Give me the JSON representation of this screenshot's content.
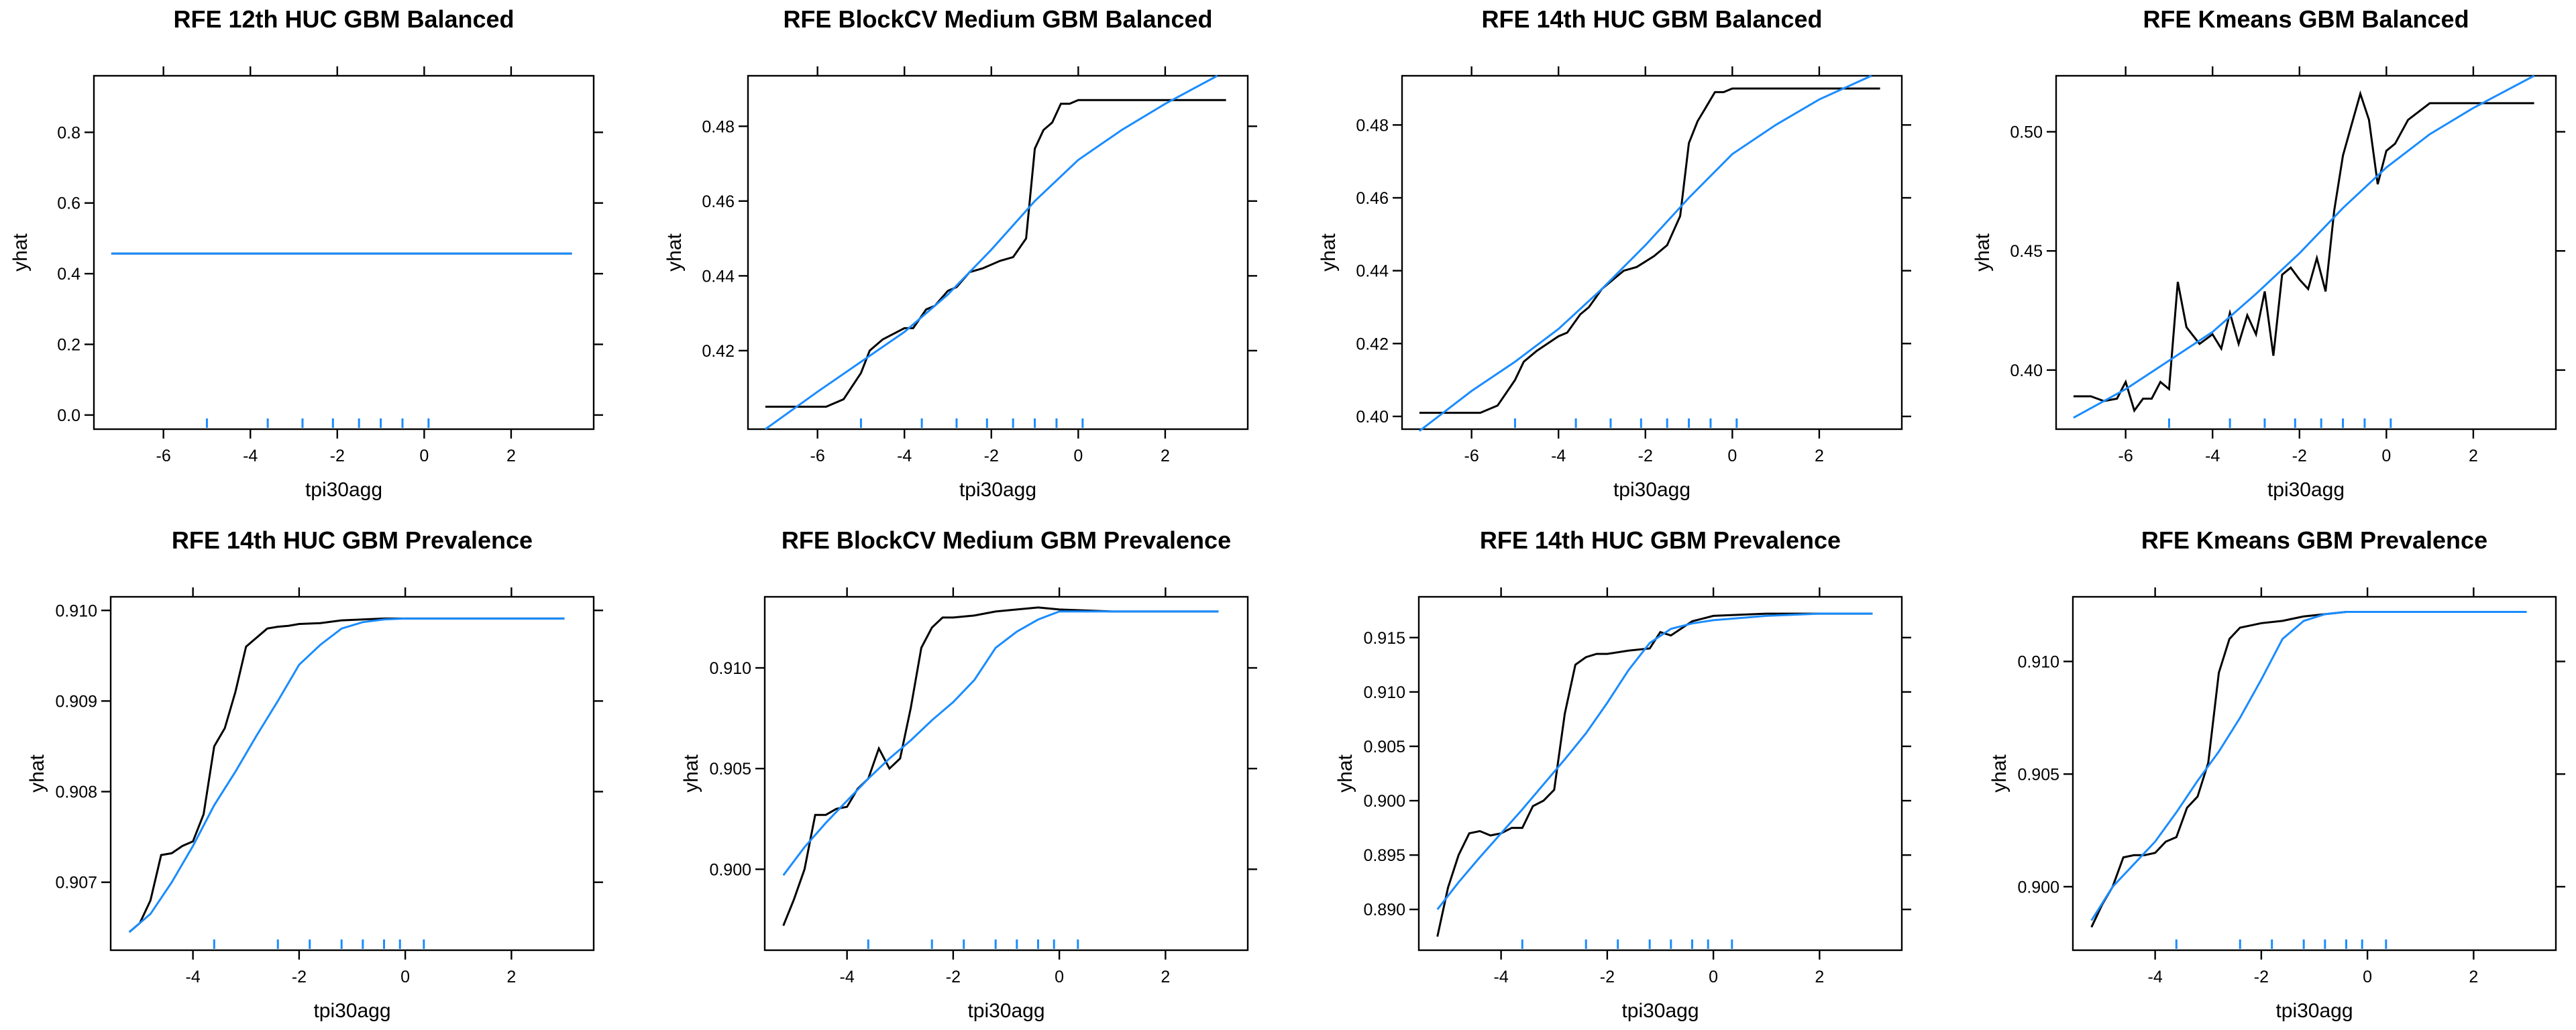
{
  "chart_data": [
    {
      "type": "line",
      "title": "RFE 12th HUC GBM Balanced",
      "xlabel": "tpi30agg",
      "ylabel": "yhat",
      "xlim": [
        -7.6,
        3.9
      ],
      "ylim": [
        -0.04,
        0.96
      ],
      "xticks": [
        -6,
        -4,
        -2,
        0,
        2
      ],
      "yticks": [
        0.0,
        0.2,
        0.4,
        0.6,
        0.8
      ],
      "ytick_labels": [
        "0.0",
        "0.2",
        "0.4",
        "0.6",
        "0.8"
      ],
      "rug": [
        -5,
        -3.6,
        -2.8,
        -2.1,
        -1.5,
        -1.0,
        -0.5,
        0.1
      ],
      "series": [
        {
          "color": "#000000",
          "x": [
            -7.2,
            3.4
          ],
          "y": [
            0.457,
            0.457
          ]
        },
        {
          "color": "#1a8cff",
          "x": [
            -7.2,
            3.4
          ],
          "y": [
            0.457,
            0.457
          ]
        }
      ]
    },
    {
      "type": "line",
      "title": "RFE BlockCV Medium GBM Balanced",
      "xlabel": "tpi30agg",
      "ylabel": "yhat",
      "xlim": [
        -7.6,
        3.9
      ],
      "ylim": [
        0.399,
        0.4935
      ],
      "xticks": [
        -6,
        -4,
        -2,
        0,
        2
      ],
      "yticks": [
        0.42,
        0.44,
        0.46,
        0.48
      ],
      "ytick_labels": [
        "0.42",
        "0.44",
        "0.46",
        "0.48"
      ],
      "rug": [
        -5,
        -3.6,
        -2.8,
        -2.1,
        -1.5,
        -1.0,
        -0.5,
        0.1
      ],
      "series": [
        {
          "color": "#000000",
          "x": [
            -7.2,
            -6.5,
            -5.8,
            -5.4,
            -5.0,
            -4.8,
            -4.5,
            -4.0,
            -3.8,
            -3.5,
            -3.3,
            -3.0,
            -2.8,
            -2.5,
            -2.2,
            -1.8,
            -1.5,
            -1.2,
            -1.0,
            -0.8,
            -0.6,
            -0.4,
            -0.2,
            0.0,
            0.2,
            0.5,
            1.0,
            2.0,
            3.4
          ],
          "y": [
            0.405,
            0.405,
            0.405,
            0.407,
            0.414,
            0.42,
            0.423,
            0.426,
            0.426,
            0.431,
            0.432,
            0.436,
            0.437,
            0.441,
            0.442,
            0.444,
            0.445,
            0.45,
            0.474,
            0.479,
            0.481,
            0.486,
            0.486,
            0.487,
            0.487,
            0.487,
            0.487,
            0.487,
            0.487
          ]
        },
        {
          "color": "#1a8cff",
          "x": [
            -7.2,
            -6.0,
            -5.0,
            -4.0,
            -3.0,
            -2.0,
            -1.0,
            0.0,
            1.0,
            2.0,
            3.2
          ],
          "y": [
            0.399,
            0.409,
            0.417,
            0.425,
            0.435,
            0.447,
            0.46,
            0.471,
            0.479,
            0.486,
            0.4935
          ]
        }
      ]
    },
    {
      "type": "line",
      "title": "RFE 14th HUC GBM Balanced",
      "xlabel": "tpi30agg",
      "ylabel": "yhat",
      "xlim": [
        -7.6,
        3.9
      ],
      "ylim": [
        0.3965,
        0.4935
      ],
      "xticks": [
        -6,
        -4,
        -2,
        0,
        2
      ],
      "yticks": [
        0.4,
        0.42,
        0.44,
        0.46,
        0.48
      ],
      "ytick_labels": [
        "0.40",
        "0.42",
        "0.44",
        "0.46",
        "0.48"
      ],
      "rug": [
        -5,
        -3.6,
        -2.8,
        -2.1,
        -1.5,
        -1.0,
        -0.5,
        0.1
      ],
      "series": [
        {
          "color": "#000000",
          "x": [
            -7.2,
            -6.5,
            -5.8,
            -5.4,
            -5.0,
            -4.8,
            -4.5,
            -4.0,
            -3.8,
            -3.5,
            -3.3,
            -3.0,
            -2.8,
            -2.5,
            -2.2,
            -1.8,
            -1.5,
            -1.2,
            -1.0,
            -0.8,
            -0.6,
            -0.4,
            -0.2,
            0.0,
            0.2,
            0.5,
            1.0,
            2.0,
            3.4
          ],
          "y": [
            0.401,
            0.401,
            0.401,
            0.403,
            0.41,
            0.415,
            0.418,
            0.422,
            0.423,
            0.428,
            0.43,
            0.435,
            0.437,
            0.44,
            0.441,
            0.444,
            0.447,
            0.455,
            0.475,
            0.481,
            0.485,
            0.489,
            0.489,
            0.49,
            0.49,
            0.49,
            0.49,
            0.49,
            0.49
          ]
        },
        {
          "color": "#1a8cff",
          "x": [
            -7.2,
            -6.0,
            -5.0,
            -4.0,
            -3.0,
            -2.0,
            -1.0,
            0.0,
            1.0,
            2.0,
            3.2
          ],
          "y": [
            0.396,
            0.407,
            0.415,
            0.424,
            0.435,
            0.447,
            0.46,
            0.472,
            0.48,
            0.487,
            0.4935
          ]
        }
      ]
    },
    {
      "type": "line",
      "title": "RFE Kmeans GBM Balanced",
      "xlabel": "tpi30agg",
      "ylabel": "yhat",
      "xlim": [
        -7.6,
        3.9
      ],
      "ylim": [
        0.3752,
        0.5235
      ],
      "xticks": [
        -6,
        -4,
        -2,
        0,
        2
      ],
      "yticks": [
        0.4,
        0.45,
        0.5
      ],
      "ytick_labels": [
        "0.40",
        "0.45",
        "0.50"
      ],
      "rug": [
        -5,
        -3.6,
        -2.8,
        -2.1,
        -1.5,
        -1.0,
        -0.5,
        0.1
      ],
      "series": [
        {
          "color": "#000000",
          "x": [
            -7.2,
            -6.8,
            -6.5,
            -6.2,
            -6.0,
            -5.8,
            -5.6,
            -5.4,
            -5.2,
            -5.0,
            -4.8,
            -4.6,
            -4.3,
            -4.0,
            -3.8,
            -3.6,
            -3.4,
            -3.2,
            -3.0,
            -2.8,
            -2.6,
            -2.4,
            -2.2,
            -2.0,
            -1.8,
            -1.6,
            -1.4,
            -1.2,
            -1.0,
            -0.8,
            -0.6,
            -0.4,
            -0.2,
            0.0,
            0.2,
            0.5,
            1.0,
            2.0,
            3.4
          ],
          "y": [
            0.389,
            0.389,
            0.387,
            0.388,
            0.395,
            0.383,
            0.388,
            0.388,
            0.395,
            0.392,
            0.437,
            0.418,
            0.411,
            0.415,
            0.409,
            0.424,
            0.411,
            0.423,
            0.415,
            0.433,
            0.406,
            0.44,
            0.443,
            0.438,
            0.434,
            0.447,
            0.433,
            0.467,
            0.49,
            0.503,
            0.516,
            0.505,
            0.478,
            0.492,
            0.495,
            0.505,
            0.512,
            0.512,
            0.512
          ]
        },
        {
          "color": "#1a8cff",
          "x": [
            -7.2,
            -6.0,
            -5.0,
            -4.0,
            -3.0,
            -2.0,
            -1.0,
            0.0,
            1.0,
            2.0,
            3.4
          ],
          "y": [
            0.38,
            0.392,
            0.404,
            0.416,
            0.432,
            0.449,
            0.468,
            0.485,
            0.499,
            0.51,
            0.5235
          ]
        }
      ]
    },
    {
      "type": "line",
      "title": "RFE 14th HUC GBM Prevalence",
      "xlabel": "tpi30agg",
      "ylabel": "yhat",
      "xlim": [
        -5.55,
        3.55
      ],
      "ylim": [
        0.90625,
        0.91015
      ],
      "xticks": [
        -4,
        -2,
        0,
        2
      ],
      "yticks": [
        0.907,
        0.908,
        0.909,
        0.91
      ],
      "ytick_labels": [
        "0.907",
        "0.908",
        "0.909",
        "0.910"
      ],
      "rug": [
        -3.6,
        -2.4,
        -1.8,
        -1.2,
        -0.8,
        -0.4,
        -0.1,
        0.35
      ],
      "series": [
        {
          "color": "#000000",
          "x": [
            -5.2,
            -5.0,
            -4.8,
            -4.6,
            -4.4,
            -4.2,
            -4.0,
            -3.8,
            -3.6,
            -3.4,
            -3.2,
            -3.0,
            -2.8,
            -2.6,
            -2.4,
            -2.2,
            -2.0,
            -1.6,
            -1.2,
            -0.8,
            -0.4,
            0.0,
            1.0,
            2.0,
            3.0
          ],
          "y": [
            0.90645,
            0.90655,
            0.9068,
            0.9073,
            0.90732,
            0.9074,
            0.90745,
            0.90775,
            0.9085,
            0.9087,
            0.9091,
            0.9096,
            0.9097,
            0.9098,
            0.90982,
            0.90983,
            0.90985,
            0.90986,
            0.90989,
            0.9099,
            0.90991,
            0.90991,
            0.90991,
            0.90991,
            0.90991
          ]
        },
        {
          "color": "#1a8cff",
          "x": [
            -5.2,
            -4.8,
            -4.4,
            -4.0,
            -3.6,
            -3.2,
            -2.8,
            -2.4,
            -2.0,
            -1.6,
            -1.2,
            -0.8,
            -0.4,
            0.0,
            1.0,
            2.0,
            3.0
          ],
          "y": [
            0.90645,
            0.90665,
            0.907,
            0.9074,
            0.90785,
            0.90822,
            0.90862,
            0.909,
            0.9094,
            0.90962,
            0.9098,
            0.90987,
            0.9099,
            0.90991,
            0.90991,
            0.90991,
            0.90991
          ]
        }
      ]
    },
    {
      "type": "line",
      "title": "RFE BlockCV Medium GBM Prevalence",
      "xlabel": "tpi30agg",
      "ylabel": "yhat",
      "xlim": [
        -5.55,
        3.55
      ],
      "ylim": [
        0.89598,
        0.91353
      ],
      "xticks": [
        -4,
        -2,
        0,
        2
      ],
      "yticks": [
        0.9,
        0.905,
        0.91
      ],
      "ytick_labels": [
        "0.900",
        "0.905",
        "0.910"
      ],
      "rug": [
        -3.6,
        -2.4,
        -1.8,
        -1.2,
        -0.8,
        -0.4,
        -0.1,
        0.35
      ],
      "series": [
        {
          "color": "#000000",
          "x": [
            -5.2,
            -5.0,
            -4.8,
            -4.6,
            -4.4,
            -4.2,
            -4.0,
            -3.8,
            -3.6,
            -3.4,
            -3.2,
            -3.0,
            -2.8,
            -2.6,
            -2.4,
            -2.2,
            -2.0,
            -1.6,
            -1.2,
            -0.8,
            -0.4,
            0.0,
            1.0,
            2.0,
            3.0
          ],
          "y": [
            0.8972,
            0.8985,
            0.9,
            0.9027,
            0.9027,
            0.903,
            0.9031,
            0.904,
            0.9045,
            0.906,
            0.905,
            0.9055,
            0.908,
            0.911,
            0.912,
            0.9125,
            0.9125,
            0.9126,
            0.9128,
            0.9129,
            0.913,
            0.9129,
            0.9128,
            0.9128,
            0.9128
          ]
        },
        {
          "color": "#1a8cff",
          "x": [
            -5.2,
            -4.8,
            -4.4,
            -4.0,
            -3.6,
            -3.2,
            -2.8,
            -2.4,
            -2.0,
            -1.6,
            -1.2,
            -0.8,
            -0.4,
            0.0,
            1.0,
            2.0,
            3.0
          ],
          "y": [
            0.8997,
            0.9011,
            0.9023,
            0.9034,
            0.9045,
            0.9055,
            0.9064,
            0.9074,
            0.9083,
            0.9094,
            0.911,
            0.9118,
            0.9124,
            0.9128,
            0.9128,
            0.9128,
            0.9128
          ]
        }
      ]
    },
    {
      "type": "line",
      "title": "RFE 14th HUC GBM Prevalence",
      "xlabel": "tpi30agg",
      "ylabel": "yhat",
      "xlim": [
        -5.55,
        3.55
      ],
      "ylim": [
        0.88625,
        0.91875
      ],
      "xticks": [
        -4,
        -2,
        0,
        2
      ],
      "yticks": [
        0.89,
        0.895,
        0.9,
        0.905,
        0.91,
        0.915
      ],
      "ytick_labels": [
        "0.890",
        "0.895",
        "0.900",
        "0.905",
        "0.910",
        "0.915"
      ],
      "rug": [
        -3.6,
        -2.4,
        -1.8,
        -1.2,
        -0.8,
        -0.4,
        -0.1,
        0.35
      ],
      "series": [
        {
          "color": "#000000",
          "x": [
            -5.2,
            -5.0,
            -4.8,
            -4.6,
            -4.4,
            -4.2,
            -4.0,
            -3.8,
            -3.6,
            -3.4,
            -3.2,
            -3.0,
            -2.8,
            -2.6,
            -2.4,
            -2.2,
            -2.0,
            -1.6,
            -1.2,
            -1.0,
            -0.8,
            -0.4,
            0.0,
            1.0,
            2.0,
            3.0
          ],
          "y": [
            0.8875,
            0.892,
            0.895,
            0.897,
            0.8972,
            0.8968,
            0.897,
            0.8975,
            0.8975,
            0.8995,
            0.9,
            0.901,
            0.908,
            0.9125,
            0.9132,
            0.9135,
            0.9135,
            0.9138,
            0.914,
            0.9155,
            0.9152,
            0.9165,
            0.917,
            0.9172,
            0.9172,
            0.9172
          ]
        },
        {
          "color": "#1a8cff",
          "x": [
            -5.2,
            -4.8,
            -4.4,
            -4.0,
            -3.6,
            -3.2,
            -2.8,
            -2.4,
            -2.0,
            -1.6,
            -1.2,
            -0.8,
            -0.4,
            0.0,
            1.0,
            2.0,
            3.0
          ],
          "y": [
            0.89,
            0.8925,
            0.8948,
            0.897,
            0.8992,
            0.9015,
            0.9038,
            0.9062,
            0.909,
            0.912,
            0.9145,
            0.9158,
            0.9163,
            0.9166,
            0.917,
            0.9172,
            0.9172
          ]
        }
      ]
    },
    {
      "type": "line",
      "title": "RFE Kmeans GBM Prevalence",
      "xlabel": "tpi30agg",
      "ylabel": "yhat",
      "xlim": [
        -5.55,
        3.55
      ],
      "ylim": [
        0.89718,
        0.91287
      ],
      "xticks": [
        -4,
        -2,
        0,
        2
      ],
      "yticks": [
        0.9,
        0.905,
        0.91
      ],
      "ytick_labels": [
        "0.900",
        "0.905",
        "0.910"
      ],
      "rug": [
        -3.6,
        -2.4,
        -1.8,
        -1.2,
        -0.8,
        -0.4,
        -0.1,
        0.35
      ],
      "series": [
        {
          "color": "#000000",
          "x": [
            -5.2,
            -5.0,
            -4.8,
            -4.6,
            -4.4,
            -4.2,
            -4.0,
            -3.8,
            -3.6,
            -3.4,
            -3.2,
            -3.0,
            -2.8,
            -2.6,
            -2.4,
            -2.2,
            -2.0,
            -1.6,
            -1.2,
            -0.8,
            -0.4,
            0.0,
            1.0,
            2.0,
            3.0
          ],
          "y": [
            0.8982,
            0.8992,
            0.9,
            0.9013,
            0.9014,
            0.9014,
            0.9015,
            0.902,
            0.9022,
            0.9035,
            0.904,
            0.9055,
            0.9095,
            0.911,
            0.9115,
            0.9116,
            0.9117,
            0.9118,
            0.912,
            0.9121,
            0.9122,
            0.9122,
            0.9122,
            0.9122,
            0.9122
          ]
        },
        {
          "color": "#1a8cff",
          "x": [
            -5.2,
            -4.8,
            -4.4,
            -4.0,
            -3.6,
            -3.2,
            -2.8,
            -2.4,
            -2.0,
            -1.6,
            -1.2,
            -0.8,
            -0.4,
            0.0,
            1.0,
            2.0,
            3.0
          ],
          "y": [
            0.8985,
            0.9,
            0.901,
            0.902,
            0.9033,
            0.9047,
            0.906,
            0.9075,
            0.9092,
            0.911,
            0.9118,
            0.9121,
            0.9122,
            0.9122,
            0.9122,
            0.9122,
            0.9122
          ]
        }
      ]
    }
  ]
}
